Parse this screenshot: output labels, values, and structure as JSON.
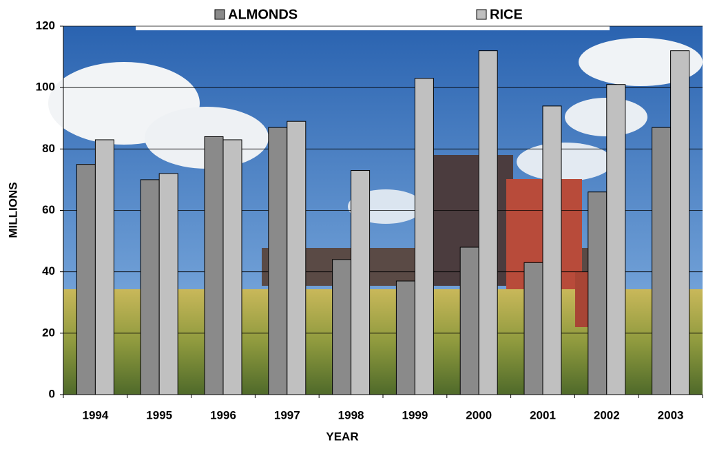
{
  "chart_data": {
    "type": "bar",
    "xlabel": "YEAR",
    "ylabel": "MILLIONS",
    "categories": [
      "1994",
      "1995",
      "1996",
      "1997",
      "1998",
      "1999",
      "2000",
      "2001",
      "2002",
      "2003"
    ],
    "series": [
      {
        "name": "ALMONDS",
        "color": "#8a8a8a",
        "values": [
          75,
          70,
          84,
          87,
          44,
          37,
          48,
          43,
          66,
          87
        ]
      },
      {
        "name": "RICE",
        "color": "#c0c0c0",
        "values": [
          83,
          72,
          83,
          89,
          73,
          103,
          112,
          94,
          101,
          112
        ]
      }
    ],
    "ylim": [
      0,
      120
    ],
    "yticks": [
      0,
      20,
      40,
      60,
      80,
      100,
      120
    ],
    "grid": true,
    "legend": "top"
  }
}
